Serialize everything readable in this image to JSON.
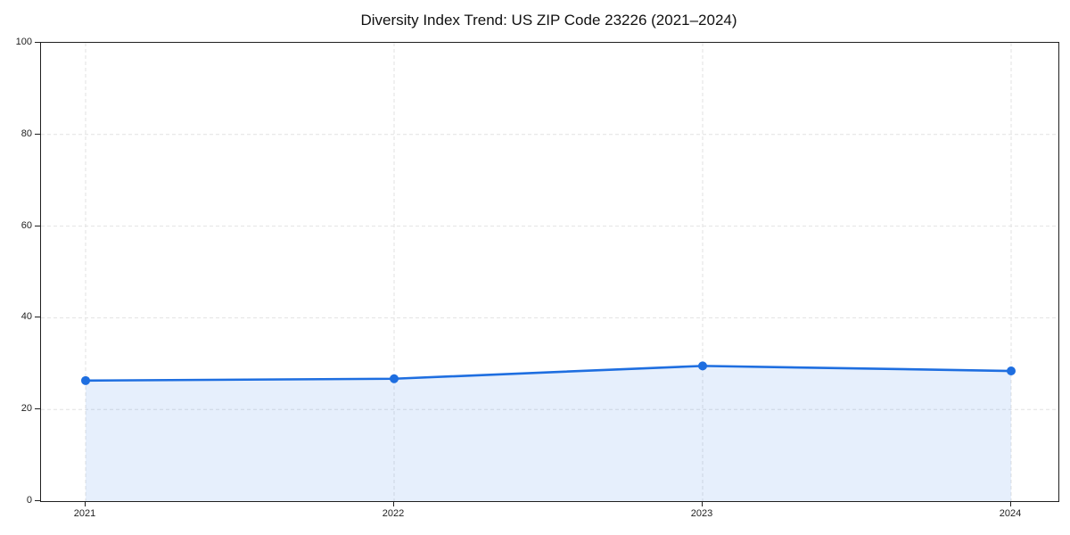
{
  "figure": {
    "title": "Diversity Index Trend: US ZIP Code 23226 (2021–2024)"
  },
  "chart_data": {
    "type": "line",
    "title": "Diversity Index Trend: US ZIP Code 23226 (2021–2024)",
    "categories": [
      "2021",
      "2022",
      "2023",
      "2024"
    ],
    "x": [
      2021,
      2022,
      2023,
      2024
    ],
    "series": [
      {
        "name": "Diversity Index",
        "values": [
          26.3,
          26.7,
          29.5,
          28.4
        ]
      }
    ],
    "xlabel": "",
    "ylabel": "",
    "ylim": [
      0,
      100
    ],
    "yticks": [
      0,
      20,
      40,
      60,
      80,
      100
    ],
    "xticks": [
      "2021",
      "2022",
      "2023",
      "2024"
    ],
    "grid": true,
    "grid_style": "dashed",
    "legend_position": "none",
    "area_fill": true,
    "marker": "circle",
    "colors": {
      "line": "#1e6ee0",
      "marker": "#1e6ee0",
      "fill": "rgba(30, 110, 224, 0.11)",
      "grid": "#e2e2e2",
      "spine": "#1f1f1f",
      "tick_label": "#1f1f1f",
      "title": "#111111",
      "background": "#ffffff"
    }
  }
}
